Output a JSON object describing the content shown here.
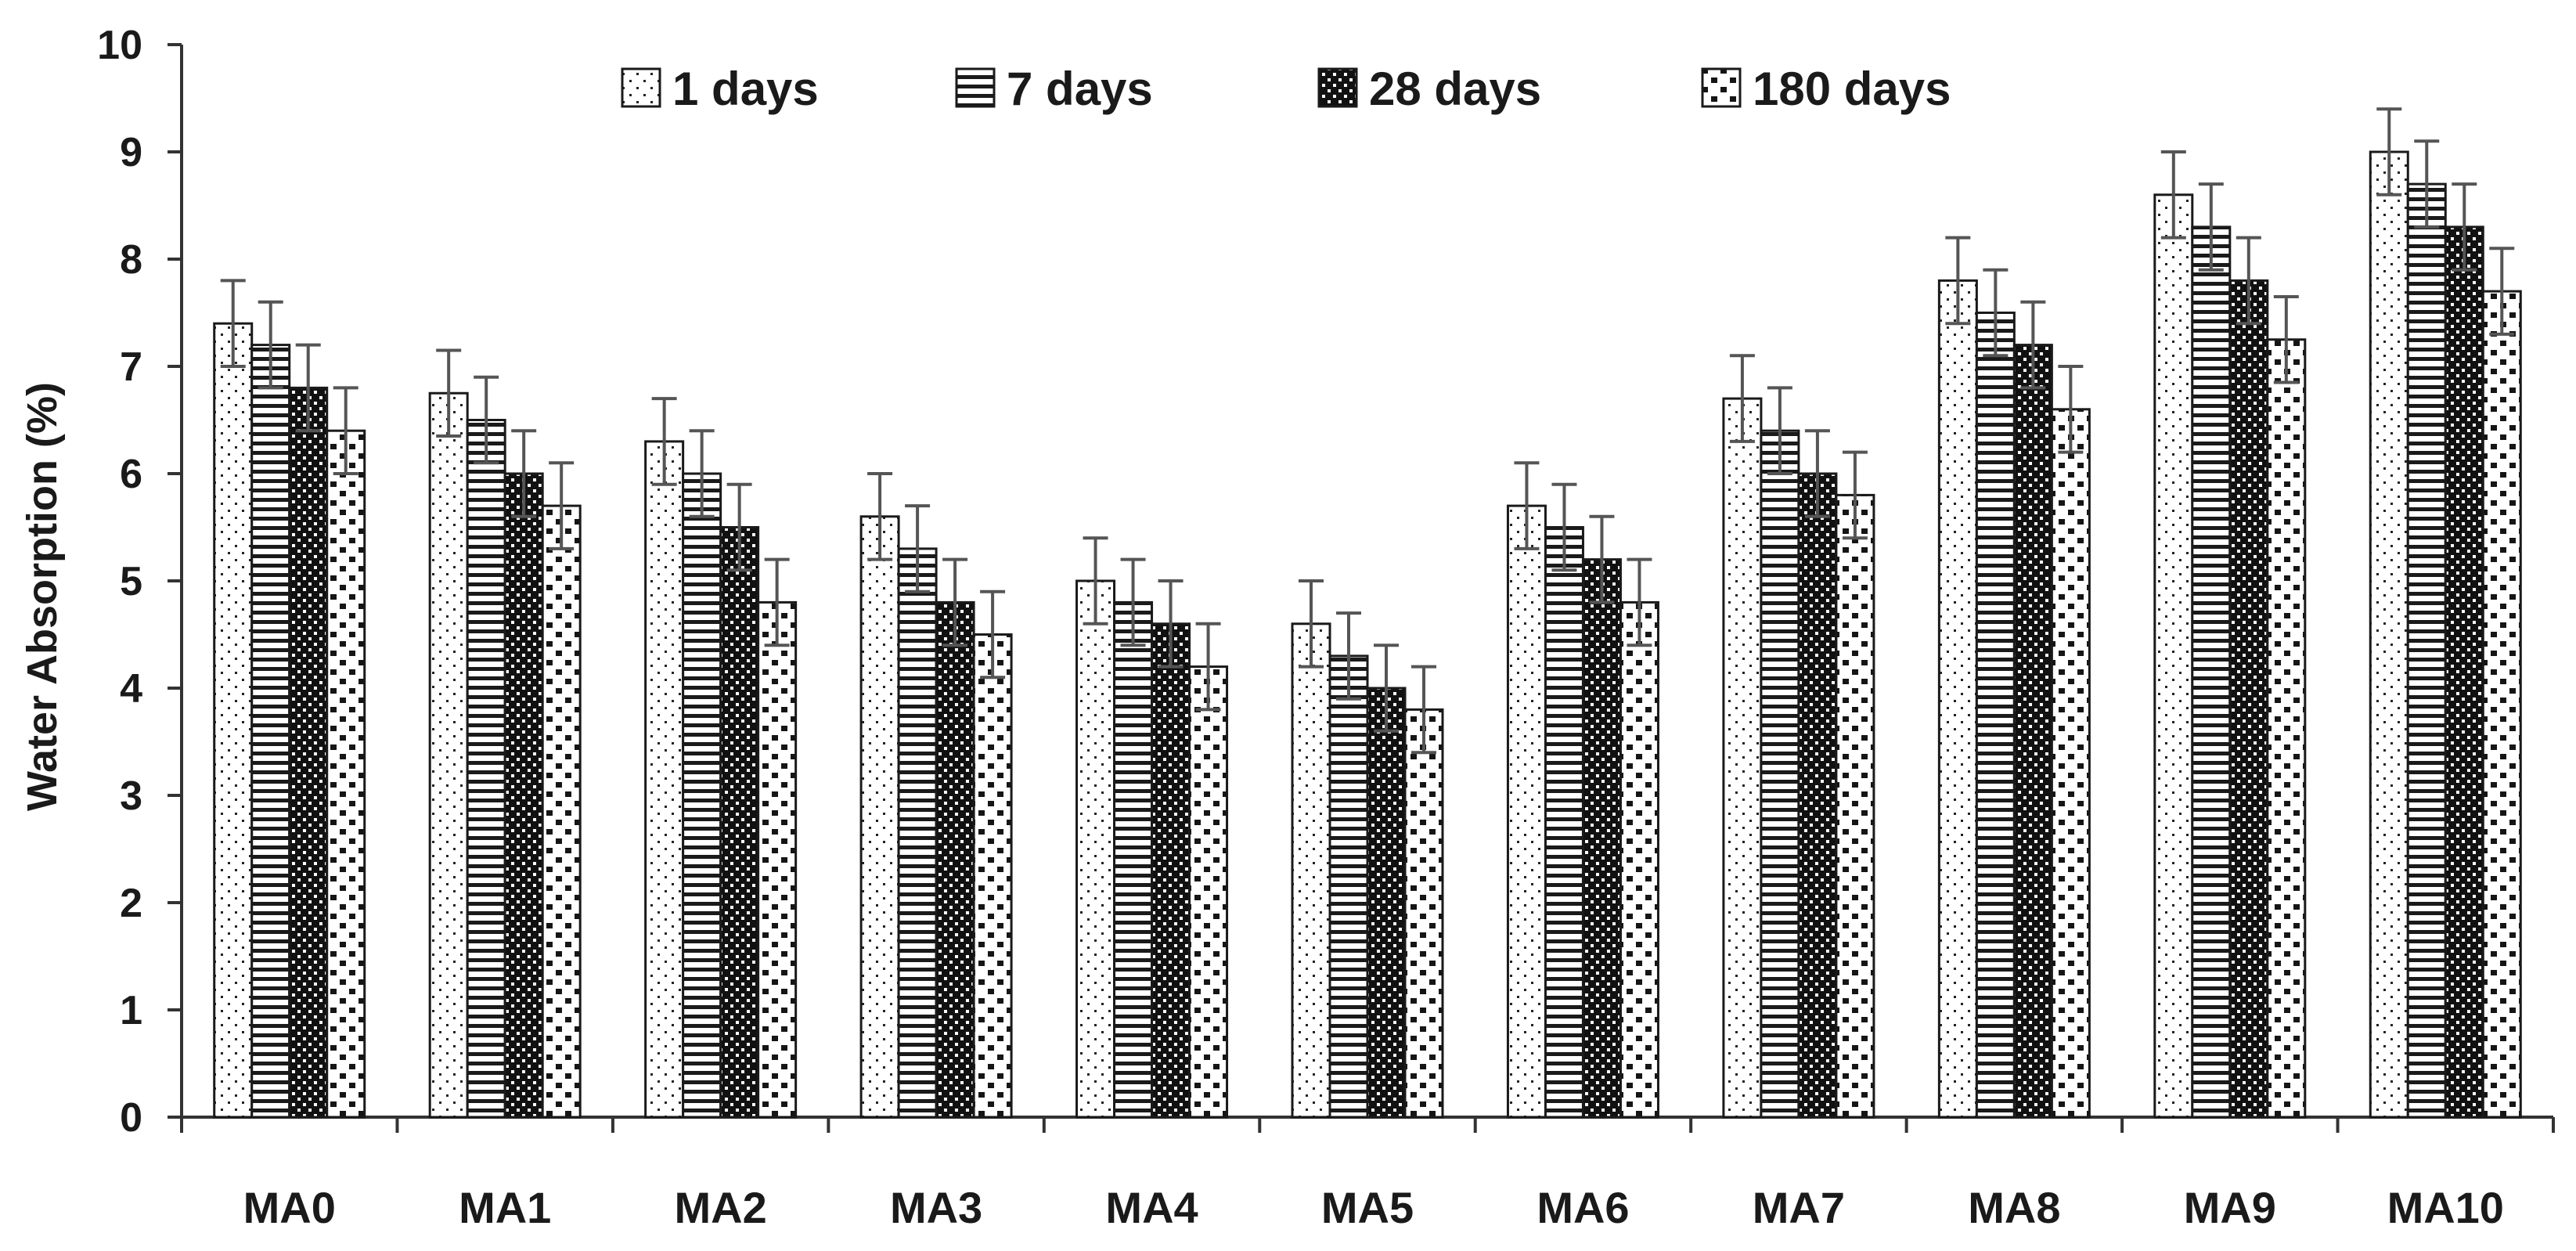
{
  "chart_data": {
    "type": "bar",
    "title": "",
    "xlabel": "",
    "ylabel": "Water Absorption (%)",
    "ylim": [
      0,
      10
    ],
    "yticks": [
      "0",
      "1",
      "2",
      "3",
      "4",
      "5",
      "6",
      "7",
      "8",
      "9",
      "10"
    ],
    "grid": false,
    "legend_position": "top",
    "error_bars": true,
    "categories": [
      "MA0",
      "MA1",
      "MA2",
      "MA3",
      "MA4",
      "MA5",
      "MA6",
      "MA7",
      "MA8",
      "MA9",
      "MA10"
    ],
    "series": [
      {
        "name": "1 days",
        "pattern": "sparse-dots",
        "values": [
          7.4,
          6.75,
          6.3,
          5.6,
          5.0,
          4.6,
          5.7,
          6.7,
          7.8,
          8.6,
          9.0
        ],
        "errors": [
          0.4,
          0.4,
          0.4,
          0.4,
          0.4,
          0.4,
          0.4,
          0.4,
          0.4,
          0.4,
          0.4
        ]
      },
      {
        "name": "7 days",
        "pattern": "horizontal-lines",
        "values": [
          7.2,
          6.5,
          6.0,
          5.3,
          4.8,
          4.3,
          5.5,
          6.4,
          7.5,
          8.3,
          8.7
        ],
        "errors": [
          0.4,
          0.4,
          0.4,
          0.4,
          0.4,
          0.4,
          0.4,
          0.4,
          0.4,
          0.4,
          0.4
        ]
      },
      {
        "name": "28 days",
        "pattern": "dense-dots",
        "values": [
          6.8,
          6.0,
          5.5,
          4.8,
          4.6,
          4.0,
          5.2,
          6.0,
          7.2,
          7.8,
          8.3
        ],
        "errors": [
          0.4,
          0.4,
          0.4,
          0.4,
          0.4,
          0.4,
          0.4,
          0.4,
          0.4,
          0.4,
          0.4
        ]
      },
      {
        "name": "180 days",
        "pattern": "checker",
        "values": [
          6.4,
          5.7,
          4.8,
          4.5,
          4.2,
          3.8,
          4.8,
          5.8,
          6.6,
          7.25,
          7.7
        ],
        "errors": [
          0.4,
          0.4,
          0.4,
          0.4,
          0.4,
          0.4,
          0.4,
          0.4,
          0.4,
          0.4,
          0.4
        ]
      }
    ]
  }
}
